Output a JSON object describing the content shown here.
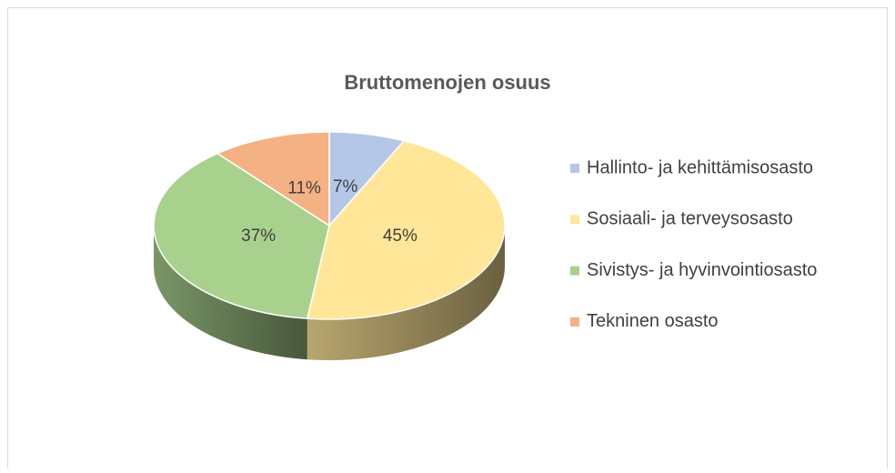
{
  "chart_data": {
    "type": "pie",
    "title": "Bruttomenojen osuus",
    "categories": [
      "Hallinto- ja kehittämisosasto",
      "Sosiaali- ja terveysosasto",
      "Sivistys- ja hyvinvointiosasto",
      "Tekninen osasto"
    ],
    "values": [
      7,
      45,
      37,
      11
    ],
    "value_labels": [
      "7%",
      "45%",
      "37%",
      "11%"
    ],
    "colors": [
      "#b4c7e7",
      "#ffe699",
      "#a9d18e",
      "#f4b183"
    ],
    "legend": "right"
  }
}
